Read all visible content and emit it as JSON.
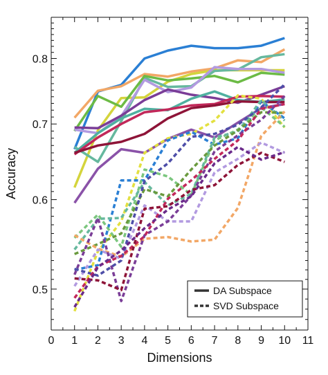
{
  "chart_data": {
    "type": "line",
    "title": "",
    "xlabel": "Dimensions",
    "ylabel": "Accuracy",
    "xlim": [
      0,
      11
    ],
    "ylim": [
      0.46,
      0.87
    ],
    "y_scale": "log",
    "x_ticks": [
      0,
      1,
      2,
      3,
      4,
      5,
      6,
      7,
      8,
      9,
      10,
      11
    ],
    "y_ticks": [
      0.5,
      0.6,
      0.7,
      0.8
    ],
    "grid": false,
    "legend": {
      "placement": "bottom-right",
      "entries": [
        {
          "label": "DA Subspace",
          "style": "solid"
        },
        {
          "label": "SVD Subspace",
          "style": "dashed"
        }
      ]
    },
    "x": [
      1,
      2,
      3,
      4,
      5,
      6,
      7,
      8,
      9,
      10
    ],
    "series": [
      {
        "style": "solid",
        "color": "#2a7fd4",
        "values": [
          0.665,
          0.748,
          0.758,
          0.8,
          0.813,
          0.821,
          0.817,
          0.817,
          0.821,
          0.834
        ]
      },
      {
        "style": "solid",
        "color": "#f2a766",
        "values": [
          0.709,
          0.749,
          0.756,
          0.775,
          0.771,
          0.779,
          0.784,
          0.797,
          0.794,
          0.815
        ]
      },
      {
        "style": "solid",
        "color": "#d4d43c",
        "values": [
          0.615,
          0.691,
          0.738,
          0.739,
          0.763,
          0.775,
          0.781,
          0.781,
          0.781,
          0.781
        ]
      },
      {
        "style": "solid",
        "color": "#66b89e",
        "values": [
          0.668,
          0.648,
          0.704,
          0.769,
          0.755,
          0.756,
          0.78,
          0.782,
          0.802,
          0.807
        ]
      },
      {
        "style": "solid",
        "color": "#6cbb45",
        "values": [
          0.69,
          0.741,
          0.725,
          0.772,
          0.765,
          0.768,
          0.772,
          0.762,
          0.777,
          0.774
        ]
      },
      {
        "style": "solid",
        "color": "#b29ae0",
        "values": [
          0.692,
          0.687,
          0.711,
          0.766,
          0.747,
          0.754,
          0.786,
          0.783,
          0.783,
          0.777
        ]
      },
      {
        "style": "solid",
        "color": "#7a3d97",
        "values": [
          0.695,
          0.694,
          0.712,
          0.735,
          0.751,
          0.743,
          0.738,
          0.731,
          0.743,
          0.756
        ]
      },
      {
        "style": "solid",
        "color": "#4fb0a0",
        "values": [
          0.66,
          0.687,
          0.708,
          0.722,
          0.72,
          0.737,
          0.748,
          0.735,
          0.732,
          0.736
        ]
      },
      {
        "style": "solid",
        "color": "#c2285a",
        "values": [
          0.658,
          0.681,
          0.7,
          0.717,
          0.721,
          0.727,
          0.729,
          0.74,
          0.741,
          0.74
        ]
      },
      {
        "style": "solid",
        "color": "#8e1438",
        "values": [
          0.66,
          0.67,
          0.675,
          0.686,
          0.708,
          0.723,
          0.727,
          0.733,
          0.732,
          0.732
        ]
      },
      {
        "style": "solid",
        "color": "#8a52a8",
        "values": [
          0.596,
          0.639,
          0.665,
          0.66,
          0.679,
          0.692,
          0.681,
          0.702,
          0.723,
          0.729
        ]
      },
      {
        "style": "dashed",
        "color": "#e3e040",
        "values": [
          0.478,
          0.54,
          0.574,
          0.66,
          0.68,
          0.686,
          0.705,
          0.742,
          0.737,
          0.695
        ]
      },
      {
        "style": "dashed",
        "color": "#2a7fd4",
        "values": [
          0.52,
          0.525,
          0.624,
          0.624,
          0.677,
          0.689,
          0.671,
          0.68,
          0.733,
          0.708
        ]
      },
      {
        "style": "dashed",
        "color": "#7bc67e",
        "values": [
          0.555,
          0.582,
          0.545,
          0.638,
          0.629,
          0.606,
          0.677,
          0.692,
          0.724,
          0.696
        ]
      },
      {
        "style": "dashed",
        "color": "#66b89e",
        "values": [
          0.542,
          0.577,
          0.578,
          0.622,
          0.593,
          0.607,
          0.681,
          0.689,
          0.735,
          0.705
        ]
      },
      {
        "style": "dashed",
        "color": "#6a9a3e",
        "values": [
          0.537,
          0.548,
          0.56,
          0.613,
          0.604,
          0.638,
          0.67,
          0.691,
          0.717,
          0.716
        ]
      },
      {
        "style": "dashed",
        "color": "#f2a766",
        "values": [
          0.558,
          0.543,
          0.534,
          0.554,
          0.556,
          0.551,
          0.553,
          0.59,
          0.683,
          0.718
        ]
      },
      {
        "style": "dashed",
        "color": "#b29ae0",
        "values": [
          0.503,
          0.542,
          0.532,
          0.593,
          0.574,
          0.574,
          0.634,
          0.652,
          0.674,
          0.66
        ]
      },
      {
        "style": "dashed",
        "color": "#7a3d97",
        "values": [
          0.515,
          0.578,
          0.488,
          0.558,
          0.574,
          0.605,
          0.662,
          0.684,
          0.706,
          0.741
        ]
      },
      {
        "style": "dashed",
        "color": "#4e4ea8",
        "values": [
          0.521,
          0.514,
          0.53,
          0.623,
          0.646,
          0.682,
          0.686,
          0.699,
          0.724,
          0.759
        ]
      },
      {
        "style": "dashed",
        "color": "#c2285a",
        "values": [
          0.491,
          0.524,
          0.535,
          0.557,
          0.601,
          0.624,
          0.652,
          0.677,
          0.722,
          0.729
        ]
      },
      {
        "style": "dashed",
        "color": "#8e1438",
        "values": [
          0.511,
          0.509,
          0.499,
          0.589,
          0.592,
          0.612,
          0.618,
          0.644,
          0.66,
          0.648
        ]
      },
      {
        "style": "dashed",
        "color": "#6a2a8a",
        "values": [
          0.482,
          0.523,
          0.541,
          0.566,
          0.588,
          0.604,
          0.646,
          0.668,
          0.651,
          0.661
        ]
      }
    ]
  }
}
